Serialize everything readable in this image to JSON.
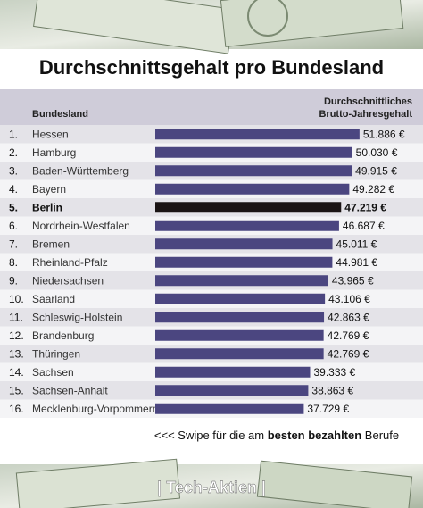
{
  "chart_data": {
    "type": "bar",
    "orientation": "horizontal",
    "title": "Durchschnittsgehalt pro Bundesland",
    "category_header": "Bundesland",
    "value_header": [
      "Durchschnittliches",
      "Brutto-Jahresgehalt"
    ],
    "ranks": [
      "1.",
      "2.",
      "3.",
      "4.",
      "5.",
      "6.",
      "7.",
      "8.",
      "9.",
      "10.",
      "11.",
      "12.",
      "13.",
      "14.",
      "15.",
      "16."
    ],
    "categories": [
      "Hessen",
      "Hamburg",
      "Baden-Württemberg",
      "Bayern",
      "Berlin",
      "Nordrhein-Westfalen",
      "Bremen",
      "Rheinland-Pfalz",
      "Niedersachsen",
      "Saarland",
      "Schleswig-Holstein",
      "Brandenburg",
      "Thüringen",
      "Sachsen",
      "Sachsen-Anhalt",
      "Mecklenburg-Vorpommern"
    ],
    "values": [
      51886,
      50030,
      49915,
      49282,
      47219,
      46687,
      45011,
      44981,
      43965,
      43106,
      42863,
      42769,
      42769,
      39333,
      38863,
      37729
    ],
    "value_labels": [
      "51.886 €",
      "50.030 €",
      "49.915 €",
      "49.282 €",
      "47.219 €",
      "46.687 €",
      "45.011 €",
      "44.981 €",
      "43.965 €",
      "43.106 €",
      "42.863 €",
      "42.769 €",
      "42.769 €",
      "39.333 €",
      "38.863 €",
      "37.729 €"
    ],
    "color": "#4b4680",
    "highlight_category": "Berlin",
    "highlight_color": "#1a1414",
    "xlim": [
      0,
      56000
    ],
    "footer": [
      "<<< Swipe für die am ",
      "besten bezahlten",
      " Berufe"
    ],
    "brand": "| Tech-Aktien |"
  }
}
